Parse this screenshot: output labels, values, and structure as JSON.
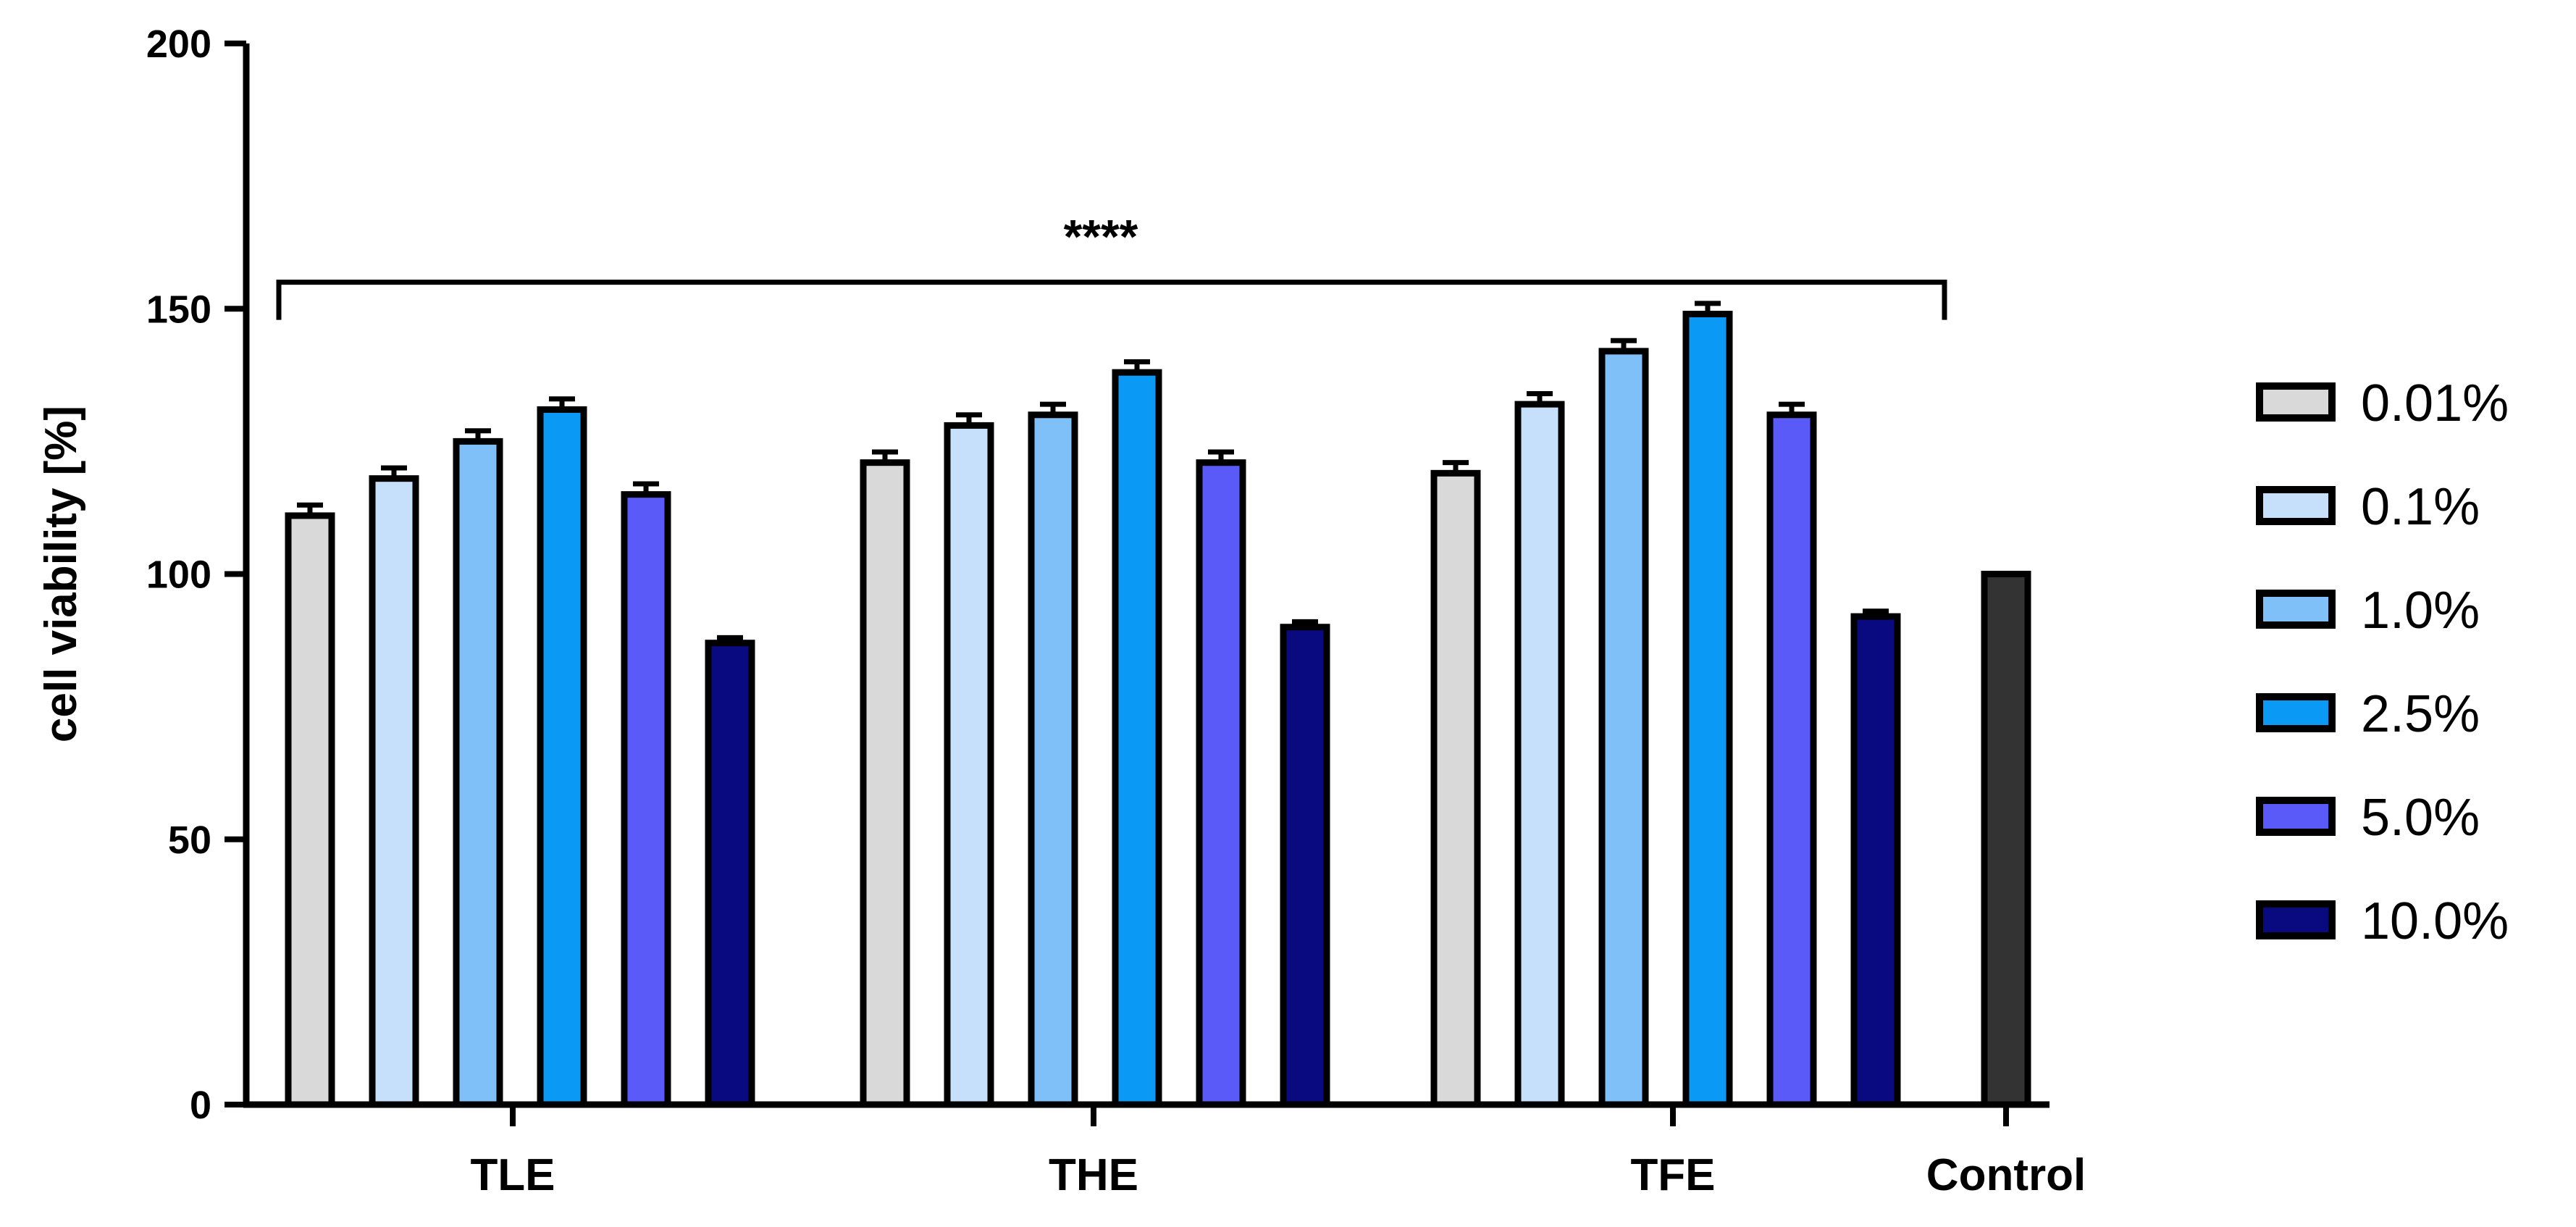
{
  "chart_data": {
    "type": "bar",
    "title": "",
    "xlabel": "",
    "ylabel": "cell viability [%]",
    "ylim": [
      0,
      200
    ],
    "yticks": [
      0,
      50,
      100,
      150,
      200
    ],
    "grid": false,
    "legend_position": "right",
    "categories": [
      "TLE",
      "THE",
      "TFE",
      "Control"
    ],
    "series": [
      {
        "name": "0.01%",
        "color": "#d9d9d9",
        "values": [
          111,
          121,
          119,
          null
        ],
        "errors": [
          2,
          2,
          2,
          null
        ]
      },
      {
        "name": "0.1%",
        "color": "#c6e0fb",
        "values": [
          118,
          128,
          132,
          null
        ],
        "errors": [
          2,
          2,
          2,
          null
        ]
      },
      {
        "name": "1.0%",
        "color": "#80c0f8",
        "values": [
          125,
          130,
          142,
          null
        ],
        "errors": [
          2,
          2,
          2,
          null
        ]
      },
      {
        "name": "2.5%",
        "color": "#0a9af5",
        "values": [
          131,
          138,
          149,
          null
        ],
        "errors": [
          2,
          2,
          2,
          null
        ]
      },
      {
        "name": "5.0%",
        "color": "#5a5af8",
        "values": [
          115,
          121,
          130,
          null
        ],
        "errors": [
          2,
          2,
          2,
          null
        ]
      },
      {
        "name": "10.0%",
        "color": "#0a0a80",
        "values": [
          87,
          90,
          92,
          null
        ],
        "errors": [
          1,
          1,
          1,
          null
        ]
      }
    ],
    "control": {
      "name": "Control",
      "color": "#333333",
      "value": 100
    },
    "significance": {
      "label": "****",
      "from": "TLE",
      "to": "TFE",
      "y": 155
    }
  }
}
